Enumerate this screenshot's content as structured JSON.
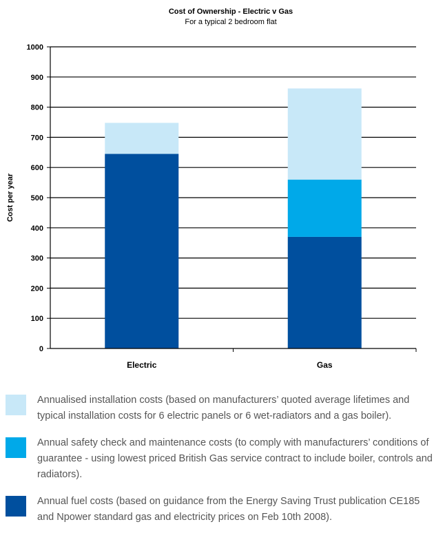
{
  "chart_data": {
    "type": "bar",
    "stacked": true,
    "title": "Cost of Ownership - Electric v Gas",
    "subtitle": "For a typical 2 bedroom flat",
    "ylabel": "Cost per year",
    "xlabel": "",
    "ylim": [
      0,
      1000
    ],
    "yticks": [
      0,
      100,
      200,
      300,
      400,
      500,
      600,
      700,
      800,
      900,
      1000
    ],
    "grid": true,
    "categories": [
      "Electric",
      "Gas"
    ],
    "series": [
      {
        "key": "fuel",
        "color": "#004f9e",
        "values": [
          645,
          370
        ]
      },
      {
        "key": "safety",
        "color": "#00a9e9",
        "values": [
          0,
          190
        ]
      },
      {
        "key": "installation",
        "color": "#c8e8f8",
        "values": [
          103,
          302
        ]
      }
    ],
    "legend_position": "bottom"
  },
  "legend": [
    {
      "color": "#c8e8f8",
      "text": "Annualised installation costs (based on manufacturers’ quoted average lifetimes and typical installation costs for 6 electric panels or 6 wet-radiators and a gas boiler)."
    },
    {
      "color": "#00a9e9",
      "text": "Annual safety check and maintenance costs (to comply with manufacturers’ conditions of guarantee - using lowest priced British Gas service contract to include boiler, controls and radiators)."
    },
    {
      "color": "#004f9e",
      "text": "Annual fuel costs (based on guidance from the Energy Saving Trust publication CE185 and Npower standard gas and electricity prices on Feb 10th 2008)."
    }
  ]
}
